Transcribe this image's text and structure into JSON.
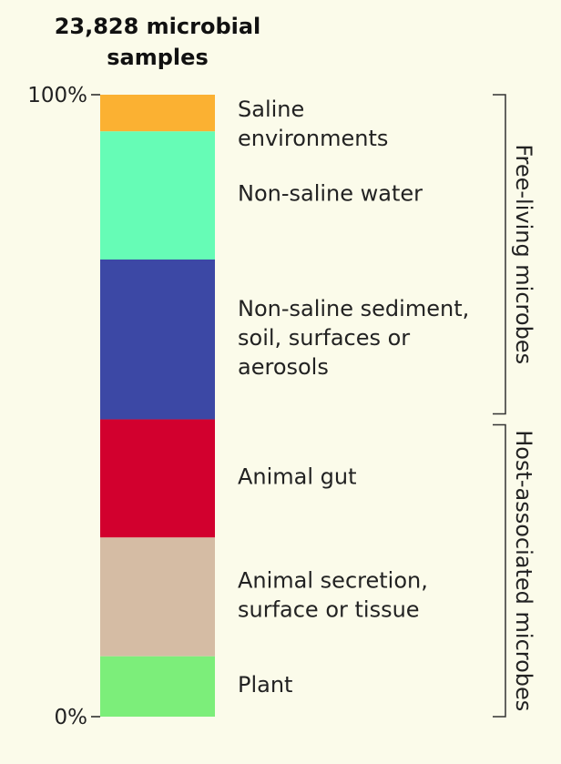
{
  "chart_data": {
    "type": "bar",
    "stacked": true,
    "title": "23,828 microbial samples",
    "title_lines": [
      "23,828 microbial",
      "samples"
    ],
    "ylim": [
      0,
      100
    ],
    "yticks": [
      {
        "value": 0,
        "label": "0%"
      },
      {
        "value": 100,
        "label": "100%"
      }
    ],
    "grid": false,
    "series": [
      {
        "name": "Saline environments",
        "lines": [
          "Saline",
          "environments"
        ],
        "start": 94.1,
        "end": 100,
        "color": "#fbb132"
      },
      {
        "name": "Non-saline water",
        "lines": [
          "Non-saline water"
        ],
        "start": 73.5,
        "end": 94.1,
        "color": "#66fcb6"
      },
      {
        "name": "Non-saline sediment, soil, surfaces or aerosols",
        "lines": [
          "Non-saline sediment,",
          "soil, surfaces or",
          "aerosols"
        ],
        "start": 47.8,
        "end": 73.5,
        "color": "#3c48a5"
      },
      {
        "name": "Animal gut",
        "lines": [
          "Animal gut"
        ],
        "start": 28.8,
        "end": 47.8,
        "color": "#d2002e"
      },
      {
        "name": "Animal secretion, surface or tissue",
        "lines": [
          "Animal secretion,",
          "surface or tissue"
        ],
        "start": 9.7,
        "end": 28.8,
        "color": "#d5bca4"
      },
      {
        "name": "Plant",
        "lines": [
          "Plant"
        ],
        "start": 0,
        "end": 9.7,
        "color": "#7cee7a"
      }
    ],
    "groups": [
      {
        "name": "Free-living microbes",
        "start": 47.8,
        "end": 100
      },
      {
        "name": "Host-associated microbes",
        "start": 0,
        "end": 47.8
      }
    ]
  }
}
